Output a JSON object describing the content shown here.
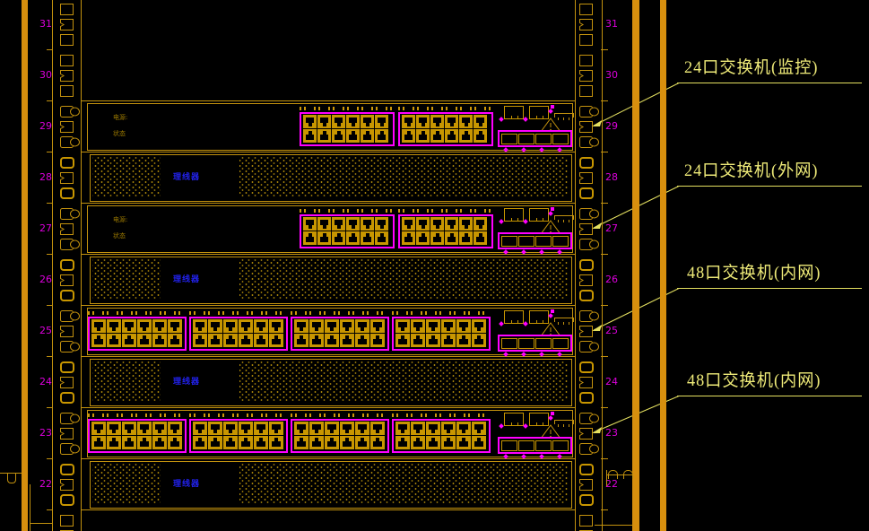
{
  "drawing": {
    "title_semantics": "network-rack-elevation",
    "colors": {
      "background": "#000000",
      "line": "#c3920e",
      "line_dim": "#9a7a08",
      "port_fill": "#c89600",
      "magenta": "#ff00ff",
      "unit_number": "#dd00dd",
      "callout_text": "#eeea78",
      "leader": "#e4e060",
      "blue_label": "#2222ee",
      "frame_bar": "#d78f0e",
      "panel_text": "#9c7a00"
    },
    "rack_units": [
      {
        "number": "31",
        "type": "empty"
      },
      {
        "number": "30",
        "type": "empty"
      },
      {
        "number": "29",
        "type": "switch24"
      },
      {
        "number": "28",
        "type": "cable"
      },
      {
        "number": "27",
        "type": "switch24"
      },
      {
        "number": "26",
        "type": "cable"
      },
      {
        "number": "25",
        "type": "switch48"
      },
      {
        "number": "24",
        "type": "cable"
      },
      {
        "number": "23",
        "type": "switch48"
      },
      {
        "number": "22",
        "type": "cable"
      }
    ],
    "cable_manager_text": "理线器",
    "switch_face_text": [
      "电源:",
      "状态"
    ],
    "ports_per_group": 12,
    "groups_per_switch": {
      "switch24": 2,
      "switch48": 4
    },
    "callouts": [
      {
        "label": "24口交换机(监控)",
        "target_unit": "29"
      },
      {
        "label": "24口交换机(外网)",
        "target_unit": "27"
      },
      {
        "label": "48口交换机(内网)",
        "target_unit": "25"
      },
      {
        "label": "48口交换机(内网)",
        "target_unit": "23"
      }
    ]
  }
}
